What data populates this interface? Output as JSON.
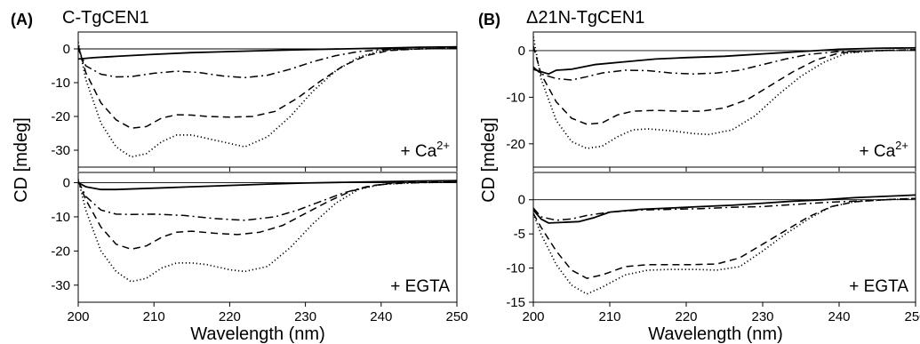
{
  "figure": {
    "panels": [
      {
        "letter": "(A)",
        "title": "C-TgCEN1",
        "ylabel": "CD [mdeg]",
        "xlabel": "Wavelength (nm)"
      },
      {
        "letter": "(B)",
        "title": "Δ21N-TgCEN1",
        "ylabel": "CD [mdeg]",
        "xlabel": "Wavelength (nm)"
      }
    ]
  },
  "chart_data": [
    {
      "type": "line",
      "panel": "(A)",
      "title": "C-TgCEN1",
      "condition": {
        "main": "+ Ca",
        "sup": "2+"
      },
      "xlabel": "",
      "ylabel": "CD [mdeg]",
      "xlim": [
        200,
        250
      ],
      "ylim": [
        -35,
        5
      ],
      "xticks": [
        200,
        210,
        220,
        230,
        240,
        250
      ],
      "yticks": [
        0,
        -10,
        -20,
        -30
      ],
      "zero_line": true,
      "series": [
        {
          "style": "solid",
          "x": [
            200,
            202,
            205,
            210,
            215,
            220,
            225,
            230,
            235,
            240,
            245,
            250
          ],
          "y": [
            -3,
            -2.6,
            -2.2,
            -1.6,
            -1.1,
            -0.8,
            -0.5,
            -0.2,
            0,
            0.2,
            0.5,
            0.6
          ]
        },
        {
          "style": "dashdot",
          "x": [
            200,
            201,
            203,
            205,
            207,
            210,
            213,
            216,
            219,
            222,
            225,
            228,
            231,
            234,
            237,
            240,
            245,
            250
          ],
          "y": [
            0,
            -5,
            -7.5,
            -8.3,
            -8.2,
            -7.2,
            -6.6,
            -7,
            -8,
            -8.5,
            -7.8,
            -6,
            -3.8,
            -2,
            -0.8,
            -0.3,
            0,
            0.2
          ]
        },
        {
          "style": "dashed",
          "x": [
            200,
            201,
            203,
            205,
            207,
            209,
            211,
            213,
            215,
            217,
            220,
            223,
            226,
            229,
            232,
            235,
            238,
            241,
            245,
            250
          ],
          "y": [
            1,
            -7,
            -16,
            -21,
            -23.5,
            -23,
            -20.5,
            -19.5,
            -19.6,
            -20,
            -20.2,
            -20,
            -18.5,
            -14.5,
            -9.5,
            -5,
            -2,
            -0.5,
            0,
            0.3
          ]
        },
        {
          "style": "dotted",
          "x": [
            200,
            201,
            203,
            205,
            207,
            209,
            211,
            213,
            215,
            217,
            219,
            222,
            225,
            228,
            231,
            234,
            237,
            240,
            245,
            250
          ],
          "y": [
            2,
            -9,
            -22,
            -29,
            -32,
            -31,
            -27.5,
            -25.5,
            -25.5,
            -26.5,
            -27.5,
            -29,
            -26,
            -20,
            -12.5,
            -6.5,
            -2.5,
            -0.5,
            0,
            0.2
          ]
        }
      ]
    },
    {
      "type": "line",
      "panel": "(A)",
      "condition": {
        "main": "+ EGTA",
        "sup": ""
      },
      "xlabel": "Wavelength (nm)",
      "ylabel": "",
      "xlim": [
        200,
        250
      ],
      "ylim": [
        -35,
        3
      ],
      "xticks": [
        200,
        210,
        220,
        230,
        240,
        250
      ],
      "yticks": [
        0,
        -10,
        -20,
        -30
      ],
      "zero_line": true,
      "series": [
        {
          "style": "solid",
          "x": [
            200,
            201,
            203,
            205,
            210,
            215,
            220,
            225,
            230,
            235,
            240,
            245,
            250
          ],
          "y": [
            0,
            -1.2,
            -2,
            -2,
            -1.6,
            -1.2,
            -0.8,
            -0.4,
            -0.1,
            0.1,
            0.3,
            0.5,
            0.6
          ]
        },
        {
          "style": "dashdot",
          "x": [
            200,
            201,
            203,
            205,
            207,
            210,
            214,
            218,
            222,
            226,
            229,
            232,
            235,
            238,
            241,
            245,
            250
          ],
          "y": [
            0.5,
            -4,
            -8,
            -9.2,
            -9.3,
            -9.2,
            -9.6,
            -10.5,
            -11,
            -10,
            -8,
            -5.5,
            -3,
            -1.2,
            -0.3,
            0,
            0.2
          ]
        },
        {
          "style": "dashed",
          "x": [
            200,
            201,
            203,
            205,
            207,
            209,
            211,
            213,
            215,
            218,
            221,
            224,
            227,
            230,
            233,
            236,
            239,
            242,
            245,
            250
          ],
          "y": [
            0.5,
            -5,
            -13,
            -18,
            -19.5,
            -18.5,
            -16,
            -14.5,
            -14.2,
            -14.8,
            -15.2,
            -14.5,
            -12.5,
            -9,
            -5.5,
            -2.5,
            -0.8,
            0,
            0.2,
            0.3
          ]
        },
        {
          "style": "dotted",
          "x": [
            200,
            201,
            203,
            205,
            207,
            209,
            211,
            213,
            215,
            217,
            220,
            222,
            225,
            228,
            231,
            234,
            237,
            240,
            245,
            250
          ],
          "y": [
            1,
            -8,
            -20,
            -26,
            -29,
            -28,
            -25,
            -23.5,
            -23.5,
            -24,
            -25.5,
            -26,
            -24.5,
            -19,
            -12,
            -6,
            -2,
            -0.5,
            0,
            0.2
          ]
        }
      ]
    },
    {
      "type": "line",
      "panel": "(B)",
      "title": "Δ21N-TgCEN1",
      "condition": {
        "main": "+ Ca",
        "sup": "2+"
      },
      "xlabel": "",
      "ylabel": "",
      "xlim": [
        200,
        250
      ],
      "ylim": [
        -25,
        4
      ],
      "xticks": [
        200,
        210,
        220,
        230,
        240,
        250
      ],
      "yticks": [
        0,
        -10,
        -20
      ],
      "zero_line": true,
      "series": [
        {
          "style": "solid",
          "x": [
            200,
            201,
            202,
            203,
            205,
            208,
            212,
            216,
            220,
            225,
            230,
            235,
            240,
            245,
            250
          ],
          "y": [
            -4,
            -4.5,
            -5,
            -4.2,
            -4,
            -3,
            -2.4,
            -1.8,
            -1.5,
            -1.2,
            -0.7,
            -0.2,
            0.3,
            0.5,
            0.6
          ]
        },
        {
          "style": "dashdot",
          "x": [
            200,
            201,
            203,
            205,
            207,
            209,
            212,
            215,
            218,
            221,
            224,
            227,
            230,
            233,
            236,
            240,
            245,
            250
          ],
          "y": [
            -3.5,
            -5,
            -6,
            -6.3,
            -5.6,
            -4.8,
            -4.2,
            -4.3,
            -4.8,
            -5,
            -4.8,
            -4.2,
            -3,
            -1.8,
            -0.8,
            -0.2,
            0,
            0.2
          ]
        },
        {
          "style": "dashed",
          "x": [
            200,
            201,
            203,
            205,
            207,
            209,
            211,
            213,
            216,
            219,
            222,
            225,
            228,
            231,
            234,
            237,
            240,
            245,
            250
          ],
          "y": [
            1,
            -5,
            -11,
            -14.5,
            -15.8,
            -15.5,
            -13.8,
            -13,
            -12.8,
            -13,
            -13,
            -12.3,
            -10.5,
            -7.5,
            -4.5,
            -2,
            -0.5,
            0,
            0.2
          ]
        },
        {
          "style": "dotted",
          "x": [
            200,
            201,
            203,
            205,
            207,
            209,
            211,
            213,
            215,
            218,
            221,
            223,
            226,
            229,
            232,
            235,
            238,
            241,
            245,
            250
          ],
          "y": [
            3,
            -6,
            -15,
            -19.5,
            -21,
            -20.5,
            -18.5,
            -17,
            -16.8,
            -17.2,
            -17.8,
            -18,
            -17,
            -14,
            -9.5,
            -5.5,
            -2.5,
            -0.5,
            0,
            0.2
          ]
        }
      ]
    },
    {
      "type": "line",
      "panel": "(B)",
      "condition": {
        "main": "+ EGTA",
        "sup": ""
      },
      "xlabel": "Wavelength (nm)",
      "ylabel": "",
      "xlim": [
        200,
        250
      ],
      "ylim": [
        -15,
        4
      ],
      "xticks": [
        200,
        210,
        220,
        230,
        240,
        250
      ],
      "yticks": [
        0,
        -5,
        -10,
        -15
      ],
      "zero_line": true,
      "series": [
        {
          "style": "solid",
          "x": [
            200,
            201,
            202,
            204,
            206,
            208,
            210,
            214,
            218,
            222,
            226,
            230,
            234,
            238,
            242,
            246,
            250
          ],
          "y": [
            -1.5,
            -2.8,
            -3.4,
            -3.3,
            -3.2,
            -2.6,
            -1.8,
            -1.4,
            -1.2,
            -1,
            -0.8,
            -0.5,
            -0.2,
            0,
            0.3,
            0.5,
            0.7
          ]
        },
        {
          "style": "dashdot",
          "x": [
            200,
            201,
            203,
            205,
            207,
            210,
            214,
            218,
            222,
            226,
            230,
            234,
            238,
            242,
            246,
            250
          ],
          "y": [
            -1.2,
            -2.5,
            -3,
            -2.8,
            -2.3,
            -1.8,
            -1.5,
            -1.4,
            -1.3,
            -1.1,
            -1,
            -0.7,
            -0.4,
            -0.2,
            0,
            0.2
          ]
        },
        {
          "style": "dashed",
          "x": [
            200,
            201,
            203,
            205,
            207,
            209,
            212,
            215,
            218,
            221,
            224,
            227,
            230,
            233,
            236,
            239,
            242,
            246,
            250
          ],
          "y": [
            -2,
            -4,
            -7.5,
            -10.3,
            -11.5,
            -11,
            -9.8,
            -9.5,
            -9.5,
            -9.5,
            -9.4,
            -8.5,
            -6.5,
            -4.5,
            -2.5,
            -1,
            -0.3,
            0,
            0.2
          ]
        },
        {
          "style": "dotted",
          "x": [
            200,
            201,
            203,
            205,
            207,
            209,
            212,
            215,
            218,
            221,
            224,
            227,
            230,
            233,
            236,
            239,
            242,
            246,
            250
          ],
          "y": [
            -2,
            -5,
            -9.5,
            -12.5,
            -13.8,
            -12.8,
            -11,
            -10.3,
            -10.2,
            -10.2,
            -10.3,
            -9.8,
            -7.5,
            -5,
            -2.8,
            -1,
            -0.3,
            0,
            0.2
          ]
        }
      ]
    }
  ]
}
